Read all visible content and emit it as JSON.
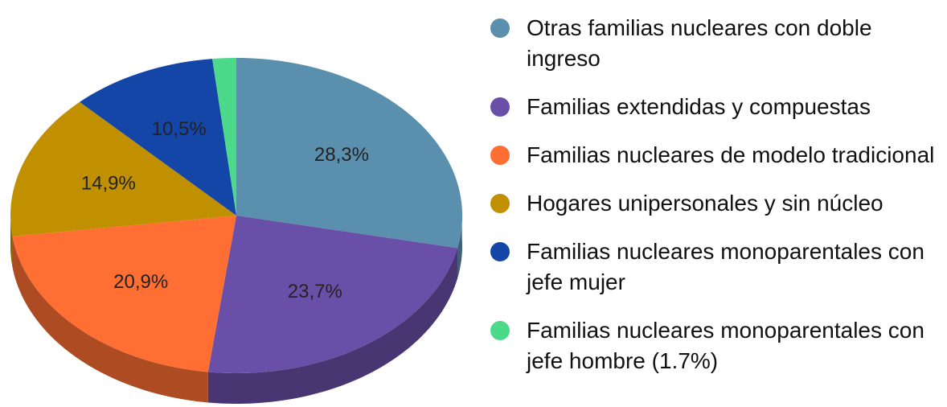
{
  "chart_data": {
    "type": "pie3d",
    "categories": [
      "Otras familias nucleares con doble ingreso",
      "Familias extendidas y compuestas",
      "Familias nucleares de modelo tradicional",
      "Hogares unipersonales y sin núcleo",
      "Familias nucleares monoparentales con jefe mujer",
      "Familias nucleares monoparentales con jefe hombre (1.7%)"
    ],
    "values": [
      28.3,
      23.7,
      20.9,
      14.9,
      10.5,
      1.7
    ],
    "value_labels": [
      "28,3%",
      "23,7%",
      "20,9%",
      "14,9%",
      "10,5%",
      null
    ],
    "colors": [
      "#5a8fad",
      "#6a4fa8",
      "#ff6e33",
      "#c09000",
      "#1446a8",
      "#4cd98a"
    ],
    "legend": "right"
  }
}
